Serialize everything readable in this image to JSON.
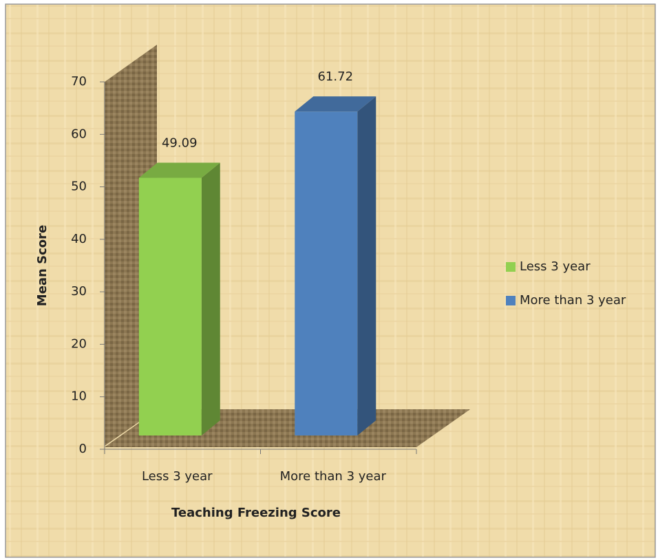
{
  "chart_data": {
    "type": "bar3d",
    "categories": [
      "Less 3 year",
      "More than 3 year"
    ],
    "series": [
      {
        "name": "Less 3 year",
        "color": "#92d050",
        "values": [
          49.09,
          null
        ]
      },
      {
        "name": "More than 3 year",
        "color": "#4f81bd",
        "values": [
          null,
          61.72
        ]
      }
    ],
    "xlabel": "Teaching Freezing Score",
    "ylabel": "Mean Score",
    "ylim": [
      0,
      70
    ],
    "yticks": [
      0,
      10,
      20,
      30,
      40,
      50,
      60,
      70
    ],
    "legend": "right"
  }
}
